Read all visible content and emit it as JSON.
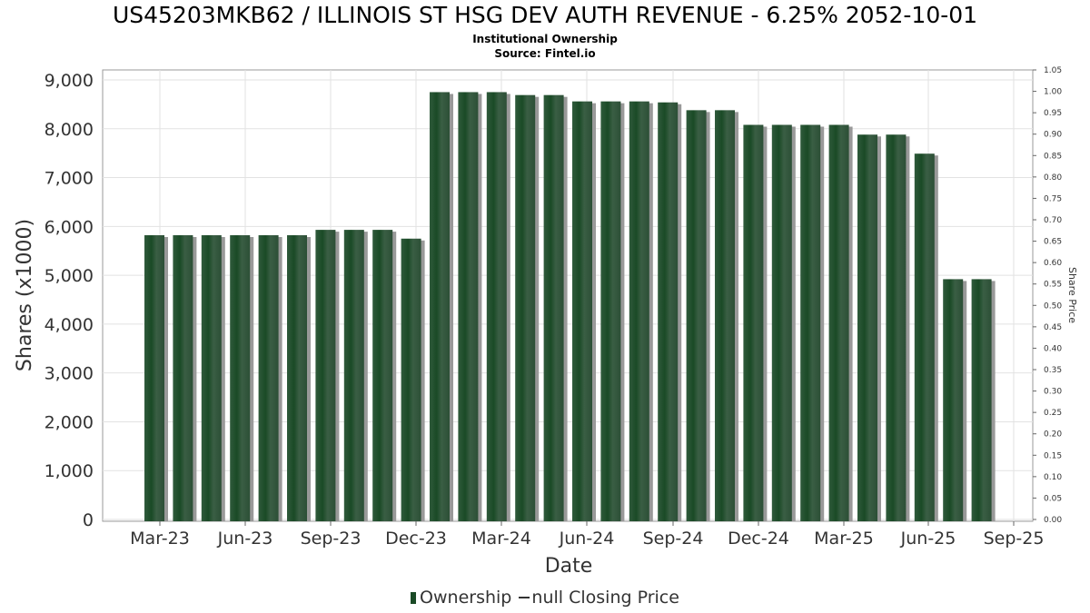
{
  "chart_data": {
    "type": "bar",
    "title": "US45203MKB62 / ILLINOIS ST HSG DEV AUTH REVENUE - 6.25% 2052-10-01",
    "subtitle": "Institutional Ownership",
    "source": "Source: Fintel.io",
    "xlabel": "Date",
    "ylabel": "Shares (x1000)",
    "y2label": "Share Price",
    "ylim": [
      0,
      9000
    ],
    "y2lim": [
      0,
      1.05
    ],
    "yticks": [
      "0",
      "1,000",
      "2,000",
      "3,000",
      "4,000",
      "5,000",
      "6,000",
      "7,000",
      "8,000",
      "9,000"
    ],
    "y2ticks": [
      "0.00",
      "0.05",
      "0.10",
      "0.15",
      "0.20",
      "0.25",
      "0.30",
      "0.35",
      "0.40",
      "0.45",
      "0.50",
      "0.55",
      "0.60",
      "0.65",
      "0.70",
      "0.75",
      "0.80",
      "0.85",
      "0.90",
      "0.95",
      "1.00",
      "1.05"
    ],
    "xticks": [
      "Mar-23",
      "Jun-23",
      "Sep-23",
      "Dec-23",
      "Mar-24",
      "Jun-24",
      "Sep-24",
      "Dec-24",
      "Mar-25",
      "Jun-25",
      "Sep-25"
    ],
    "grid": true,
    "legend_position": "bottom",
    "legend": [
      "Ownership",
      "null Closing Price"
    ],
    "series": [
      {
        "name": "Ownership",
        "color": "#1a4a26",
        "values": [
          5820,
          5820,
          5820,
          5820,
          5820,
          5820,
          5930,
          5930,
          5930,
          5750,
          8750,
          8750,
          8750,
          8690,
          8690,
          8560,
          8560,
          8560,
          8540,
          8380,
          8380,
          8080,
          8080,
          8080,
          8080,
          7880,
          7880,
          7490,
          4920,
          4920
        ]
      }
    ]
  }
}
